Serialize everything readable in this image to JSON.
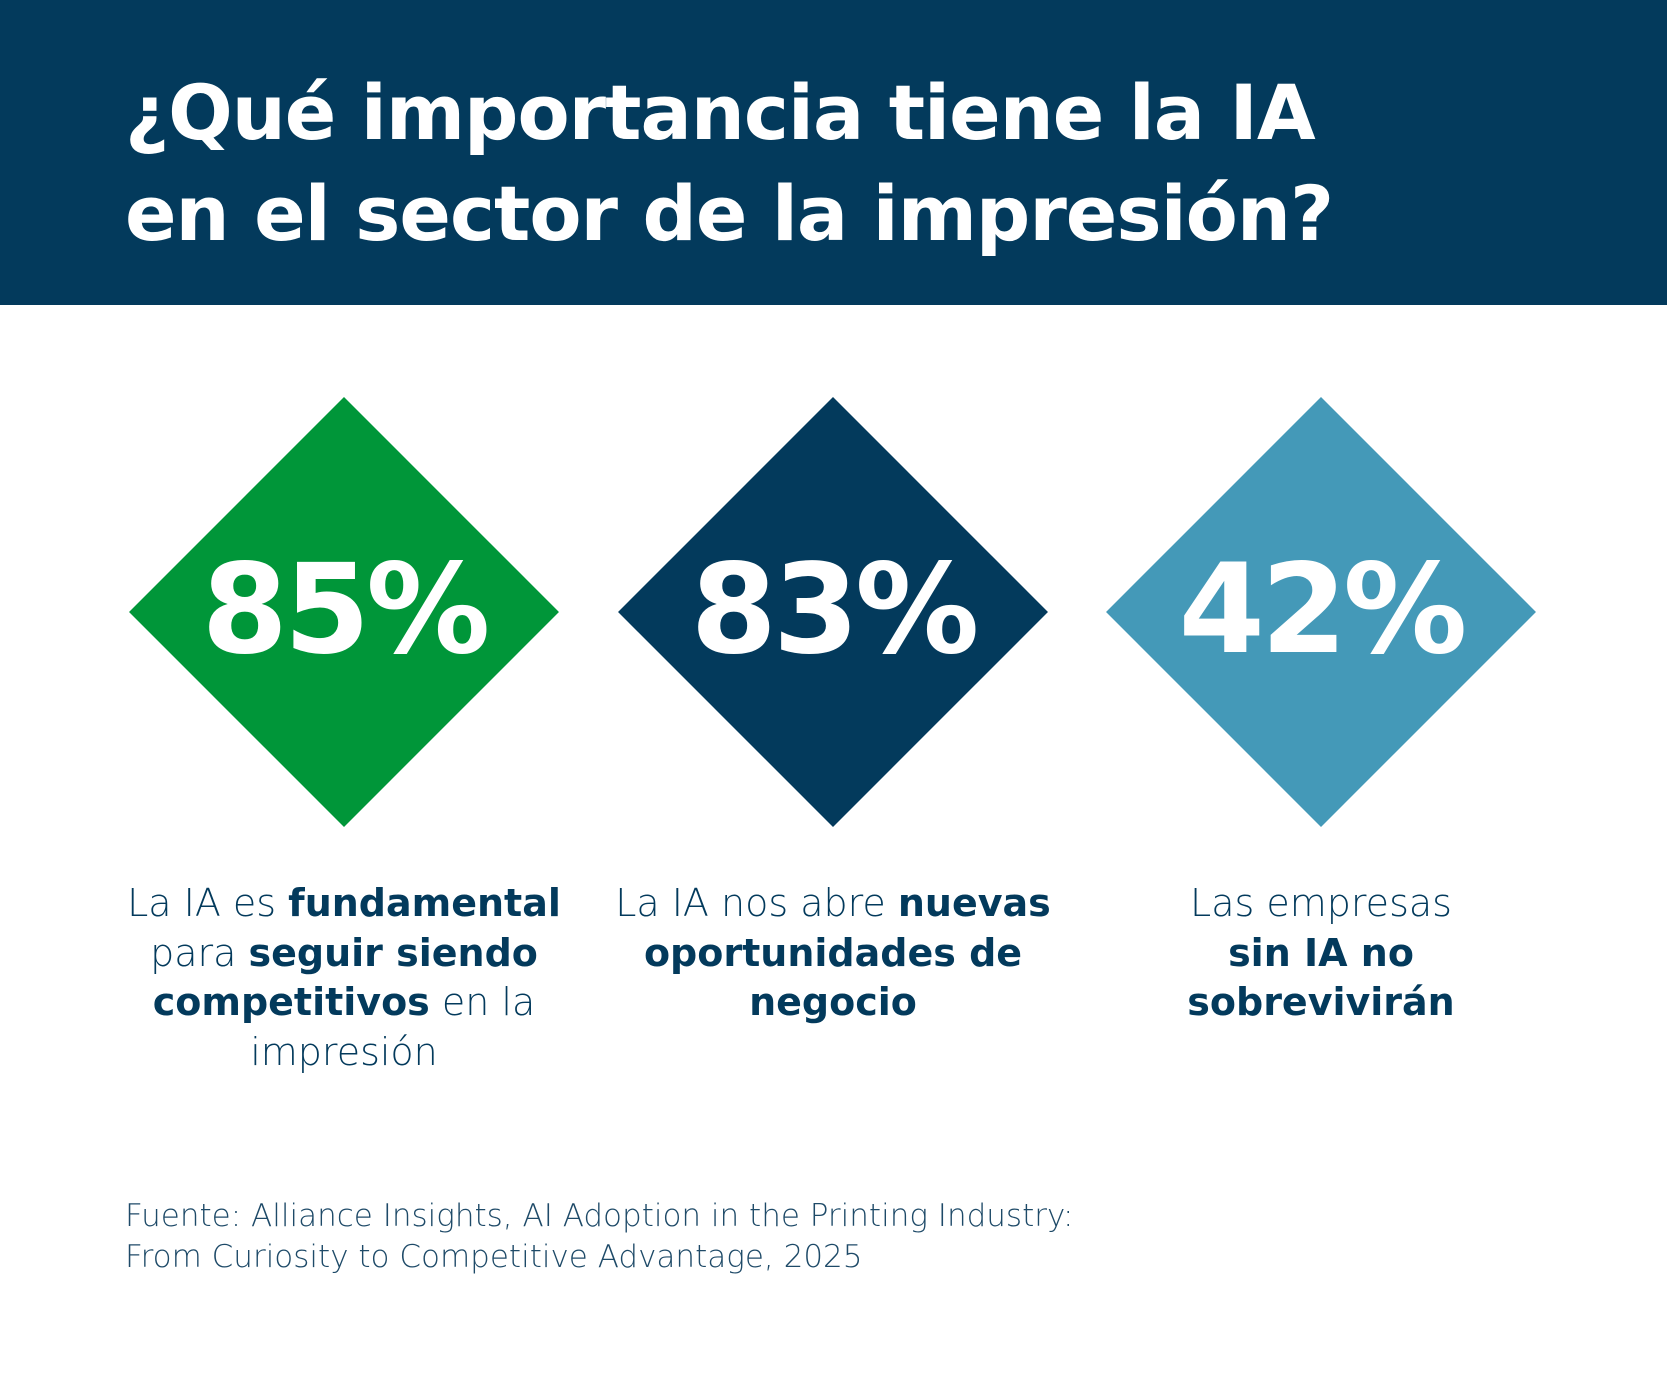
{
  "title": {
    "line1": "¿Qué importancia tiene la IA",
    "line2": "en el sector de la impresión?"
  },
  "colors": {
    "header": "#033a5c",
    "green": "#009639",
    "navy": "#033a5c",
    "teal": "#4499b8"
  },
  "stats": [
    {
      "value": "85%",
      "color": "#009639",
      "caption": [
        {
          "t": "La IA es ",
          "b": false
        },
        {
          "t": "fundamental",
          "b": true
        },
        {
          "t": " para ",
          "b": false
        },
        {
          "t": "seguir siendo competitivos",
          "b": true
        },
        {
          "t": " en la impresión",
          "b": false
        }
      ]
    },
    {
      "value": "83%",
      "color": "#033a5c",
      "caption": [
        {
          "t": "La IA nos abre ",
          "b": false
        },
        {
          "t": "nuevas oportunidades de negocio",
          "b": true
        }
      ]
    },
    {
      "value": "42%",
      "color": "#4499b8",
      "caption": [
        {
          "t": "Las empresas ",
          "b": false
        },
        {
          "t": "sin IA no sobrevivirán",
          "b": true
        }
      ]
    }
  ],
  "source": {
    "line1": "Fuente: Alliance Insights, AI Adoption in the Printing Industry:",
    "line2": "From Curiosity to Competitive Advantage, 2025"
  }
}
